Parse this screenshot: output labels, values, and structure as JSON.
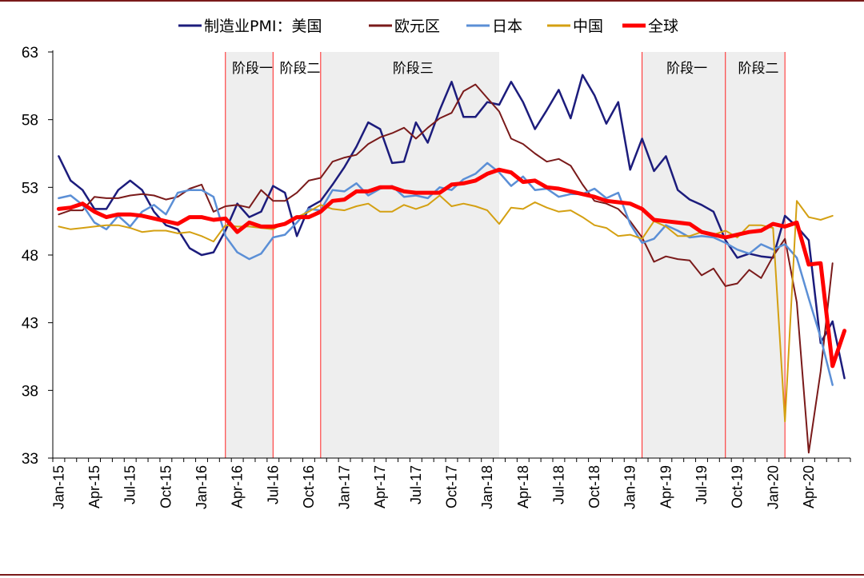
{
  "chart_data": {
    "type": "line",
    "ylim": [
      33,
      63
    ],
    "yticks": [
      33,
      38,
      43,
      48,
      53,
      58,
      63
    ],
    "x_tick_labels": [
      "Jan-15",
      "Apr-15",
      "Jul-15",
      "Oct-15",
      "Jan-16",
      "Apr-16",
      "Jul-16",
      "Oct-16",
      "Jan-17",
      "Apr-17",
      "Jul-17",
      "Oct-17",
      "Jan-18",
      "Apr-18",
      "Jul-18",
      "Oct-18",
      "Jan-19",
      "Apr-19",
      "Jul-19",
      "Oct-19",
      "Jan-20",
      "Apr-20"
    ],
    "x_start": "Jan-15",
    "grid": false,
    "legend_position": "top",
    "phases": [
      {
        "label": "阶段一",
        "start": "Mar-16",
        "end": "Jul-16",
        "shaded": true
      },
      {
        "label": "阶段二",
        "start": "Jul-16",
        "end": "Nov-16",
        "shaded": false
      },
      {
        "label": "阶段三",
        "start": "Nov-16",
        "end": "Feb-18",
        "shaded": true
      },
      {
        "label": "阶段一",
        "start": "Feb-19",
        "end": "Sep-19",
        "shaded": true
      },
      {
        "label": "阶段二",
        "start": "Sep-19",
        "end": "Feb-20",
        "shaded": true
      }
    ],
    "series": [
      {
        "name": "制造业PMI：美国",
        "color": "#1c1c7c",
        "width": 2.5,
        "values": [
          55.3,
          53.5,
          52.8,
          51.4,
          51.4,
          52.8,
          53.5,
          52.8,
          51.2,
          50.2,
          49.9,
          48.5,
          48.0,
          48.2,
          49.8,
          51.8,
          50.8,
          51.2,
          53.1,
          52.6,
          49.4,
          51.5,
          52.0,
          53.2,
          54.5,
          56.0,
          57.8,
          57.3,
          54.8,
          54.9,
          57.8,
          56.3,
          58.7,
          60.8,
          58.2,
          58.2,
          59.3,
          59.1,
          60.8,
          59.3,
          57.3,
          58.7,
          60.2,
          58.1,
          61.3,
          59.8,
          57.7,
          59.3,
          54.3,
          56.6,
          54.2,
          55.3,
          52.8,
          52.1,
          51.7,
          51.2,
          49.1,
          47.8,
          48.1,
          47.9,
          47.8,
          50.9,
          50.1,
          49.1,
          41.5,
          43.1,
          38.9
        ]
      },
      {
        "name": "欧元区",
        "color": "#7a1a1a",
        "width": 2,
        "values": [
          51.0,
          51.3,
          51.3,
          52.3,
          52.2,
          52.2,
          52.4,
          52.5,
          52.4,
          52.1,
          52.3,
          52.9,
          53.2,
          51.2,
          51.6,
          51.7,
          51.5,
          52.8,
          52.0,
          52.0,
          52.6,
          53.5,
          53.7,
          54.9,
          55.2,
          55.4,
          56.2,
          56.7,
          57.0,
          57.4,
          56.6,
          57.4,
          58.1,
          58.5,
          60.1,
          60.6,
          59.6,
          58.6,
          56.6,
          56.2,
          55.5,
          54.9,
          55.1,
          54.6,
          53.2,
          52.0,
          51.8,
          51.4,
          50.5,
          49.3,
          47.5,
          47.9,
          47.7,
          47.6,
          46.5,
          47.0,
          45.7,
          45.9,
          46.9,
          46.3,
          47.9,
          49.2,
          44.5,
          33.4,
          39.4,
          47.4
        ]
      },
      {
        "name": "日本",
        "color": "#5b8fd6",
        "width": 2.5,
        "values": [
          52.2,
          52.4,
          51.7,
          50.4,
          49.9,
          50.9,
          50.1,
          51.2,
          51.7,
          51.0,
          52.6,
          52.8,
          52.8,
          52.3,
          49.4,
          48.2,
          47.7,
          48.1,
          49.3,
          49.5,
          50.4,
          51.4,
          51.3,
          52.8,
          52.7,
          53.3,
          52.4,
          52.9,
          53.1,
          52.3,
          52.4,
          52.2,
          53.0,
          52.8,
          53.6,
          54.0,
          54.8,
          54.1,
          53.1,
          53.8,
          52.8,
          52.9,
          52.3,
          52.5,
          52.5,
          52.9,
          52.2,
          52.6,
          50.3,
          48.9,
          49.2,
          50.2,
          49.8,
          49.3,
          49.4,
          49.3,
          48.9,
          48.4,
          48.1,
          48.8,
          48.4,
          48.8,
          47.8,
          44.8,
          41.9,
          38.4
        ]
      },
      {
        "name": "中国",
        "color": "#d4a012",
        "width": 2,
        "values": [
          50.1,
          49.9,
          50.0,
          50.1,
          50.2,
          50.2,
          50.0,
          49.7,
          49.8,
          49.8,
          49.6,
          49.7,
          49.4,
          49.0,
          50.2,
          50.1,
          50.1,
          50.0,
          49.9,
          50.4,
          50.8,
          51.2,
          51.7,
          51.4,
          51.3,
          51.6,
          51.8,
          51.2,
          51.2,
          51.7,
          51.4,
          51.7,
          52.4,
          51.6,
          51.8,
          51.6,
          51.3,
          50.3,
          51.5,
          51.4,
          51.9,
          51.5,
          51.2,
          51.3,
          50.8,
          50.2,
          50.0,
          49.4,
          49.5,
          49.2,
          50.5,
          50.1,
          49.4,
          49.4,
          49.7,
          49.5,
          49.8,
          49.3,
          50.2,
          50.2,
          50.0,
          35.7,
          52.0,
          50.8,
          50.6,
          50.9
        ]
      },
      {
        "name": "全球",
        "color": "#ff0000",
        "width": 5,
        "values": [
          51.4,
          51.5,
          51.8,
          51.2,
          50.8,
          51.0,
          51.0,
          50.9,
          50.7,
          50.5,
          50.3,
          50.8,
          50.8,
          50.6,
          50.7,
          49.7,
          50.4,
          50.1,
          50.1,
          50.3,
          50.8,
          50.8,
          51.2,
          52.0,
          52.1,
          52.7,
          52.7,
          53.0,
          53.0,
          52.7,
          52.6,
          52.6,
          52.6,
          53.2,
          53.3,
          53.5,
          54.0,
          54.3,
          54.1,
          53.4,
          53.5,
          53.0,
          52.9,
          52.7,
          52.5,
          52.3,
          52.0,
          51.9,
          51.8,
          51.4,
          50.6,
          50.5,
          50.4,
          50.3,
          49.7,
          49.5,
          49.3,
          49.5,
          49.7,
          49.8,
          50.3,
          50.1,
          50.4,
          47.3,
          47.4,
          39.8,
          42.4
        ]
      }
    ]
  }
}
